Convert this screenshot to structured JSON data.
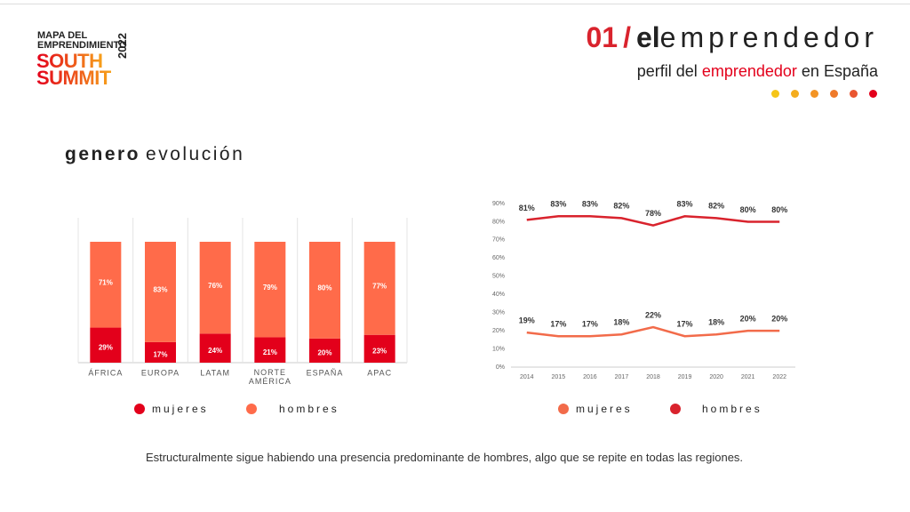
{
  "header": {
    "logo": {
      "line1": "MAPA DEL",
      "line2": "EMPRENDIMIENTO",
      "line3": "SOUTH",
      "line4": "SUMMIT",
      "year": "2022"
    },
    "number": "01",
    "slash": "/",
    "title_bold": "el",
    "title_light": "emprendedor",
    "subtitle_start": "perfil del",
    "subtitle_highlight": "emprendedor",
    "subtitle_end": "en España"
  },
  "section": {
    "bold": "genero",
    "light": "evolución"
  },
  "footer": "Estructuralmente sigue habiendo una presencia predominante de hombres, algo que se repite en todas las regiones.",
  "chart_data": [
    {
      "type": "stacked-bar",
      "categories": [
        "ÁFRICA",
        "EUROPA",
        "LATAM",
        "NORTE AMÉRICA",
        "ESPAÑA",
        "APAC"
      ],
      "series": [
        {
          "name": "mujeres",
          "color": "#e3001b",
          "values": [
            29,
            17,
            24,
            21,
            20,
            23
          ],
          "value_labels": [
            "29%",
            "17%",
            "24%",
            "21%",
            "20%",
            "23%"
          ]
        },
        {
          "name": "hombres",
          "color": "#ff6b4a",
          "values": [
            71,
            83,
            76,
            79,
            80,
            77
          ],
          "value_labels": [
            "71%",
            "83%",
            "76%",
            "79%",
            "80%",
            "77%"
          ]
        }
      ]
    },
    {
      "type": "line",
      "categories": [
        "2014",
        "2015",
        "2016",
        "2017",
        "2018",
        "2019",
        "2020",
        "2021",
        "2022"
      ],
      "ylim": [
        0,
        90
      ],
      "yticks": [
        {
          "value": 0,
          "label": "0%"
        },
        {
          "value": 10,
          "label": "10%"
        },
        {
          "value": 20,
          "label": "20%"
        },
        {
          "value": 30,
          "label": "30%"
        },
        {
          "value": 40,
          "label": "40%"
        },
        {
          "value": 50,
          "label": "50%"
        },
        {
          "value": 60,
          "label": "60%"
        },
        {
          "value": 70,
          "label": "70%"
        },
        {
          "value": 80,
          "label": "80%"
        },
        {
          "value": 90,
          "label": "90%"
        }
      ],
      "series": [
        {
          "name": "mujeres",
          "color": "#f26b4a",
          "values": [
            19,
            17,
            17,
            18,
            22,
            17,
            18,
            20,
            20
          ],
          "value_labels": [
            "19%",
            "17%",
            "17%",
            "18%",
            "22%",
            "17%",
            "18%",
            "20%",
            "20%"
          ]
        },
        {
          "name": "hombres",
          "color": "#d9232d",
          "values": [
            81,
            83,
            83,
            82,
            78,
            83,
            82,
            80,
            80
          ],
          "value_labels": [
            "81%",
            "83%",
            "83%",
            "82%",
            "78%",
            "83%",
            "82%",
            "80%",
            "80%"
          ]
        }
      ]
    }
  ]
}
